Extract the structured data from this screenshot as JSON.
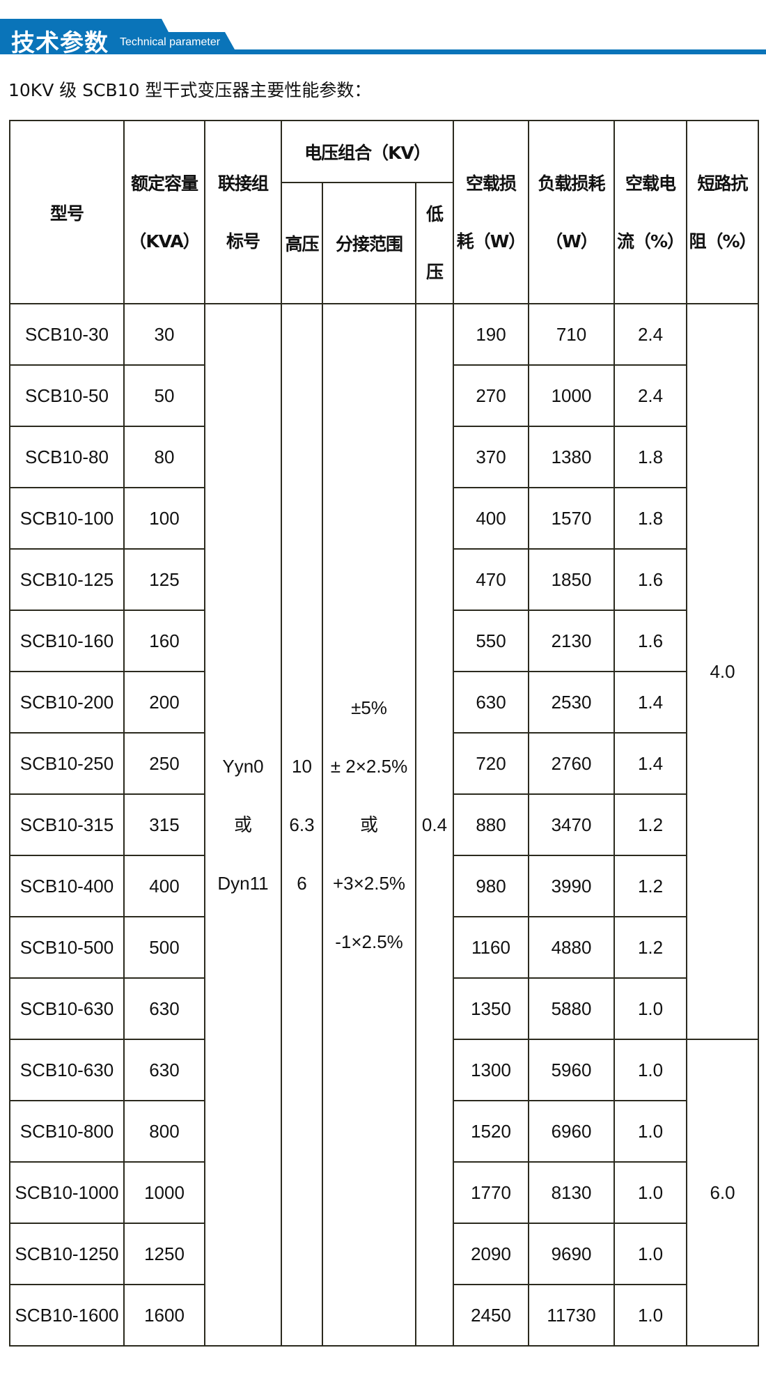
{
  "banner": {
    "title": "技术参数",
    "subtitle": "Technical parameter",
    "color": "#0a74b9"
  },
  "subtitle": "10KV 级 SCB10 型干式变压器主要性能参数：",
  "table": {
    "headers": {
      "model": "型号",
      "capacity": [
        "额定容量",
        "（KVA）"
      ],
      "group": [
        "联接组",
        "标号"
      ],
      "voltage": "电压组合（KV）",
      "hv": "高压",
      "tap": "分接范围",
      "lv": [
        "低",
        "压"
      ],
      "noload_loss": [
        "空载损",
        "耗（W）"
      ],
      "load_loss": [
        "负载损耗",
        "（W）"
      ],
      "noload_current": [
        "空载电",
        "流（%）"
      ],
      "impedance": [
        "短路抗",
        "阻（%）"
      ]
    },
    "group_value": [
      "Yyn0",
      "或",
      "Dyn11"
    ],
    "hv_value": [
      "10",
      "6.3",
      "6"
    ],
    "tap_value": [
      "±5%",
      "± 2×2.5%",
      "或",
      "+3×2.5%",
      "-1×2.5%"
    ],
    "lv_value": "0.4",
    "impedance_values": [
      "4.0",
      "6.0"
    ],
    "rows": [
      [
        "SCB10-30",
        "30",
        "190",
        "710",
        "2.4"
      ],
      [
        "SCB10-50",
        "50",
        "270",
        "1000",
        "2.4"
      ],
      [
        "SCB10-80",
        "80",
        "370",
        "1380",
        "1.8"
      ],
      [
        "SCB10-100",
        "100",
        "400",
        "1570",
        "1.8"
      ],
      [
        "SCB10-125",
        "125",
        "470",
        "1850",
        "1.6"
      ],
      [
        "SCB10-160",
        "160",
        "550",
        "2130",
        "1.6"
      ],
      [
        "SCB10-200",
        "200",
        "630",
        "2530",
        "1.4"
      ],
      [
        "SCB10-250",
        "250",
        "720",
        "2760",
        "1.4"
      ],
      [
        "SCB10-315",
        "315",
        "880",
        "3470",
        "1.2"
      ],
      [
        "SCB10-400",
        "400",
        "980",
        "3990",
        "1.2"
      ],
      [
        "SCB10-500",
        "500",
        "1160",
        "4880",
        "1.2"
      ],
      [
        "SCB10-630",
        "630",
        "1350",
        "5880",
        "1.0"
      ],
      [
        "SCB10-630",
        "630",
        "1300",
        "5960",
        "1.0"
      ],
      [
        "SCB10-800",
        "800",
        "1520",
        "6960",
        "1.0"
      ],
      [
        "SCB10-1000",
        "1000",
        "1770",
        "8130",
        "1.0"
      ],
      [
        "SCB10-1250",
        "1250",
        "2090",
        "9690",
        "1.0"
      ],
      [
        "SCB10-1600",
        "1600",
        "2450",
        "11730",
        "1.0"
      ]
    ]
  }
}
